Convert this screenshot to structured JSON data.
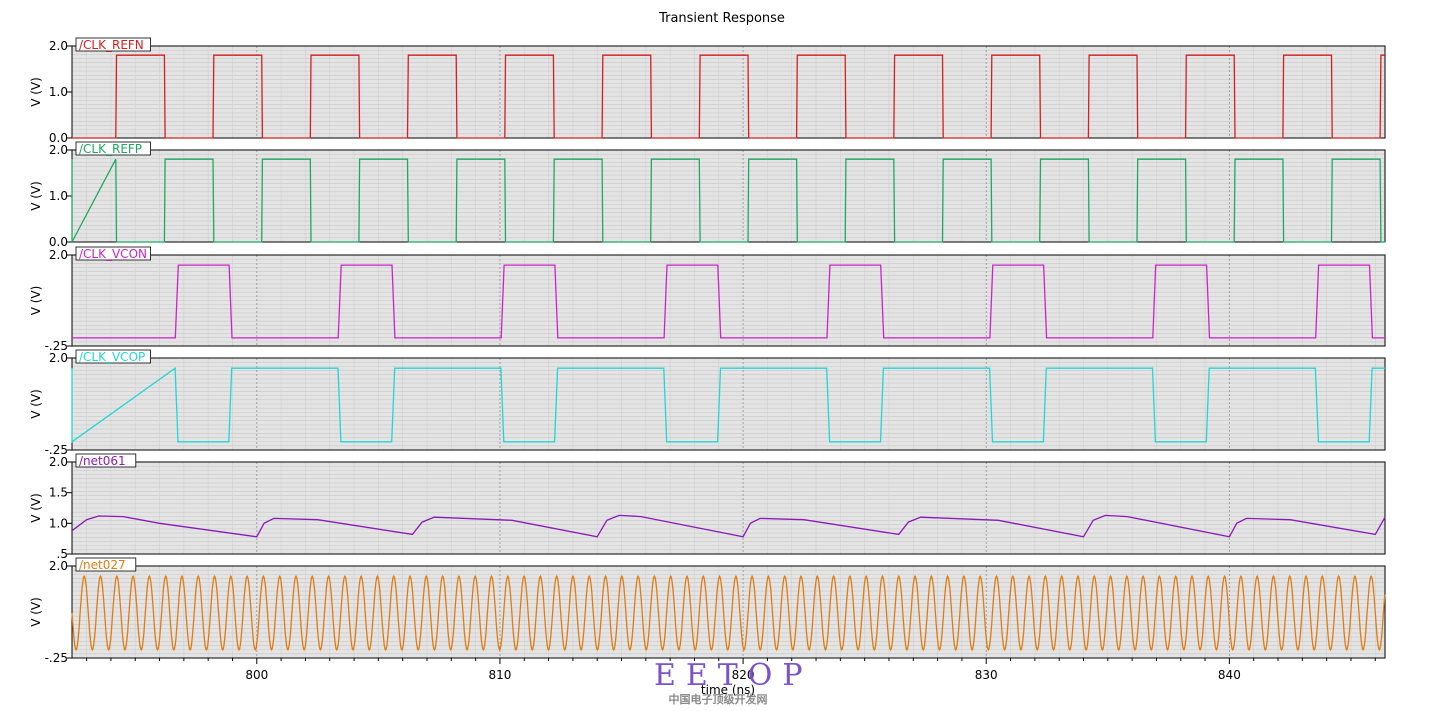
{
  "chart_data": {
    "type": "line",
    "title": "Transient Response",
    "xlabel": "time (ns)",
    "xlim": [
      792.4,
      846.4
    ],
    "x_ticks": [
      800,
      810,
      820,
      830,
      840
    ],
    "x_tick_labels": [
      "800",
      "810",
      "820",
      "830",
      "840"
    ],
    "grid": true,
    "panels": [
      {
        "name": "/CLK_REFN",
        "color": "#d42020",
        "ylabel": "V (V)",
        "ylim": [
          0.0,
          2.0
        ],
        "y_tick_labels": [
          "2.0",
          "1.0",
          "0.0"
        ],
        "y_tick_values": [
          2.0,
          1.0,
          0.0
        ],
        "kind": "square",
        "period_ns": 4.0,
        "phase_ns": 0.0,
        "high_from_ns": 1.8,
        "duty": 0.5,
        "v_high": 1.8,
        "v_low": 0.0,
        "rise_ns": 0.03
      },
      {
        "name": "/CLK_REFP",
        "color": "#1fa860",
        "ylabel": "V (V)",
        "ylim": [
          0.0,
          2.0
        ],
        "y_tick_labels": [
          "2.0",
          "1.0",
          "0.0"
        ],
        "y_tick_values": [
          2.0,
          1.0,
          0.0
        ],
        "kind": "square",
        "period_ns": 4.0,
        "phase_ns": 0.0,
        "high_from_ns": -0.2,
        "duty": 0.5,
        "v_high": 1.8,
        "v_low": 0.0,
        "rise_ns": 0.03
      },
      {
        "name": "/CLK_VCON",
        "color": "#cc22cc",
        "ylabel": "V (V)",
        "ylim": [
          -0.25,
          2.0
        ],
        "y_tick_labels": [
          "2.0",
          "-.25"
        ],
        "y_tick_values": [
          2.0,
          -0.25
        ],
        "kind": "square",
        "period_ns": 6.7,
        "phase_ns": 0.0,
        "high_from_ns": 4.25,
        "duty": 0.33,
        "v_high": 1.75,
        "v_low": -0.05,
        "rise_ns": 0.12
      },
      {
        "name": "/CLK_VCOP",
        "color": "#22d6d6",
        "ylabel": "V (V)",
        "ylim": [
          -0.25,
          2.0
        ],
        "y_tick_labels": [
          "2.0",
          "-.25"
        ],
        "y_tick_values": [
          2.0,
          -0.25
        ],
        "kind": "square",
        "period_ns": 6.7,
        "phase_ns": 0.0,
        "high_from_ns": 6.45,
        "duty": 0.67,
        "v_high": 1.75,
        "v_low": -0.05,
        "rise_ns": 0.12
      },
      {
        "name": "/net061",
        "color": "#8a1ab8",
        "ylabel": "V (V)",
        "ylim": [
          0.5,
          2.0
        ],
        "y_tick_labels": [
          "2.0",
          "1.5",
          "1.0",
          ".5"
        ],
        "y_tick_values": [
          2.0,
          1.5,
          1.0,
          0.5
        ],
        "kind": "sawtooth",
        "points": [
          [
            792.4,
            0.88
          ],
          [
            793.0,
            1.06
          ],
          [
            793.5,
            1.12
          ],
          [
            794.5,
            1.11
          ],
          [
            796.0,
            1.0
          ],
          [
            800.0,
            0.78
          ],
          [
            800.3,
            1.0
          ],
          [
            800.7,
            1.08
          ],
          [
            802.5,
            1.06
          ],
          [
            806.4,
            0.82
          ],
          [
            806.8,
            1.02
          ],
          [
            807.3,
            1.1
          ],
          [
            810.5,
            1.05
          ],
          [
            814.0,
            0.78
          ],
          [
            814.4,
            1.05
          ],
          [
            814.9,
            1.13
          ],
          [
            815.8,
            1.11
          ],
          [
            820.0,
            0.78
          ],
          [
            820.3,
            1.0
          ],
          [
            820.7,
            1.08
          ],
          [
            822.5,
            1.06
          ],
          [
            826.4,
            0.82
          ],
          [
            826.8,
            1.02
          ],
          [
            827.3,
            1.1
          ],
          [
            830.5,
            1.05
          ],
          [
            834.0,
            0.78
          ],
          [
            834.4,
            1.05
          ],
          [
            834.9,
            1.13
          ],
          [
            835.8,
            1.11
          ],
          [
            840.0,
            0.78
          ],
          [
            840.3,
            1.0
          ],
          [
            840.7,
            1.08
          ],
          [
            842.5,
            1.06
          ],
          [
            846.0,
            0.82
          ],
          [
            846.4,
            1.1
          ]
        ]
      },
      {
        "name": "/net027",
        "color": "#e07b10",
        "ylabel": "V (V)",
        "ylim": [
          -0.25,
          2.0
        ],
        "y_tick_labels": [
          "2.0",
          "-.25"
        ],
        "y_tick_values": [
          2.0,
          -0.25
        ],
        "kind": "sine",
        "period_ns": 0.67,
        "v_high": 1.75,
        "v_low": -0.05,
        "phase_ns": 0.0
      }
    ]
  },
  "watermark": {
    "brand": "EETOP",
    "subtitle": "中国电子顶级开发网"
  }
}
